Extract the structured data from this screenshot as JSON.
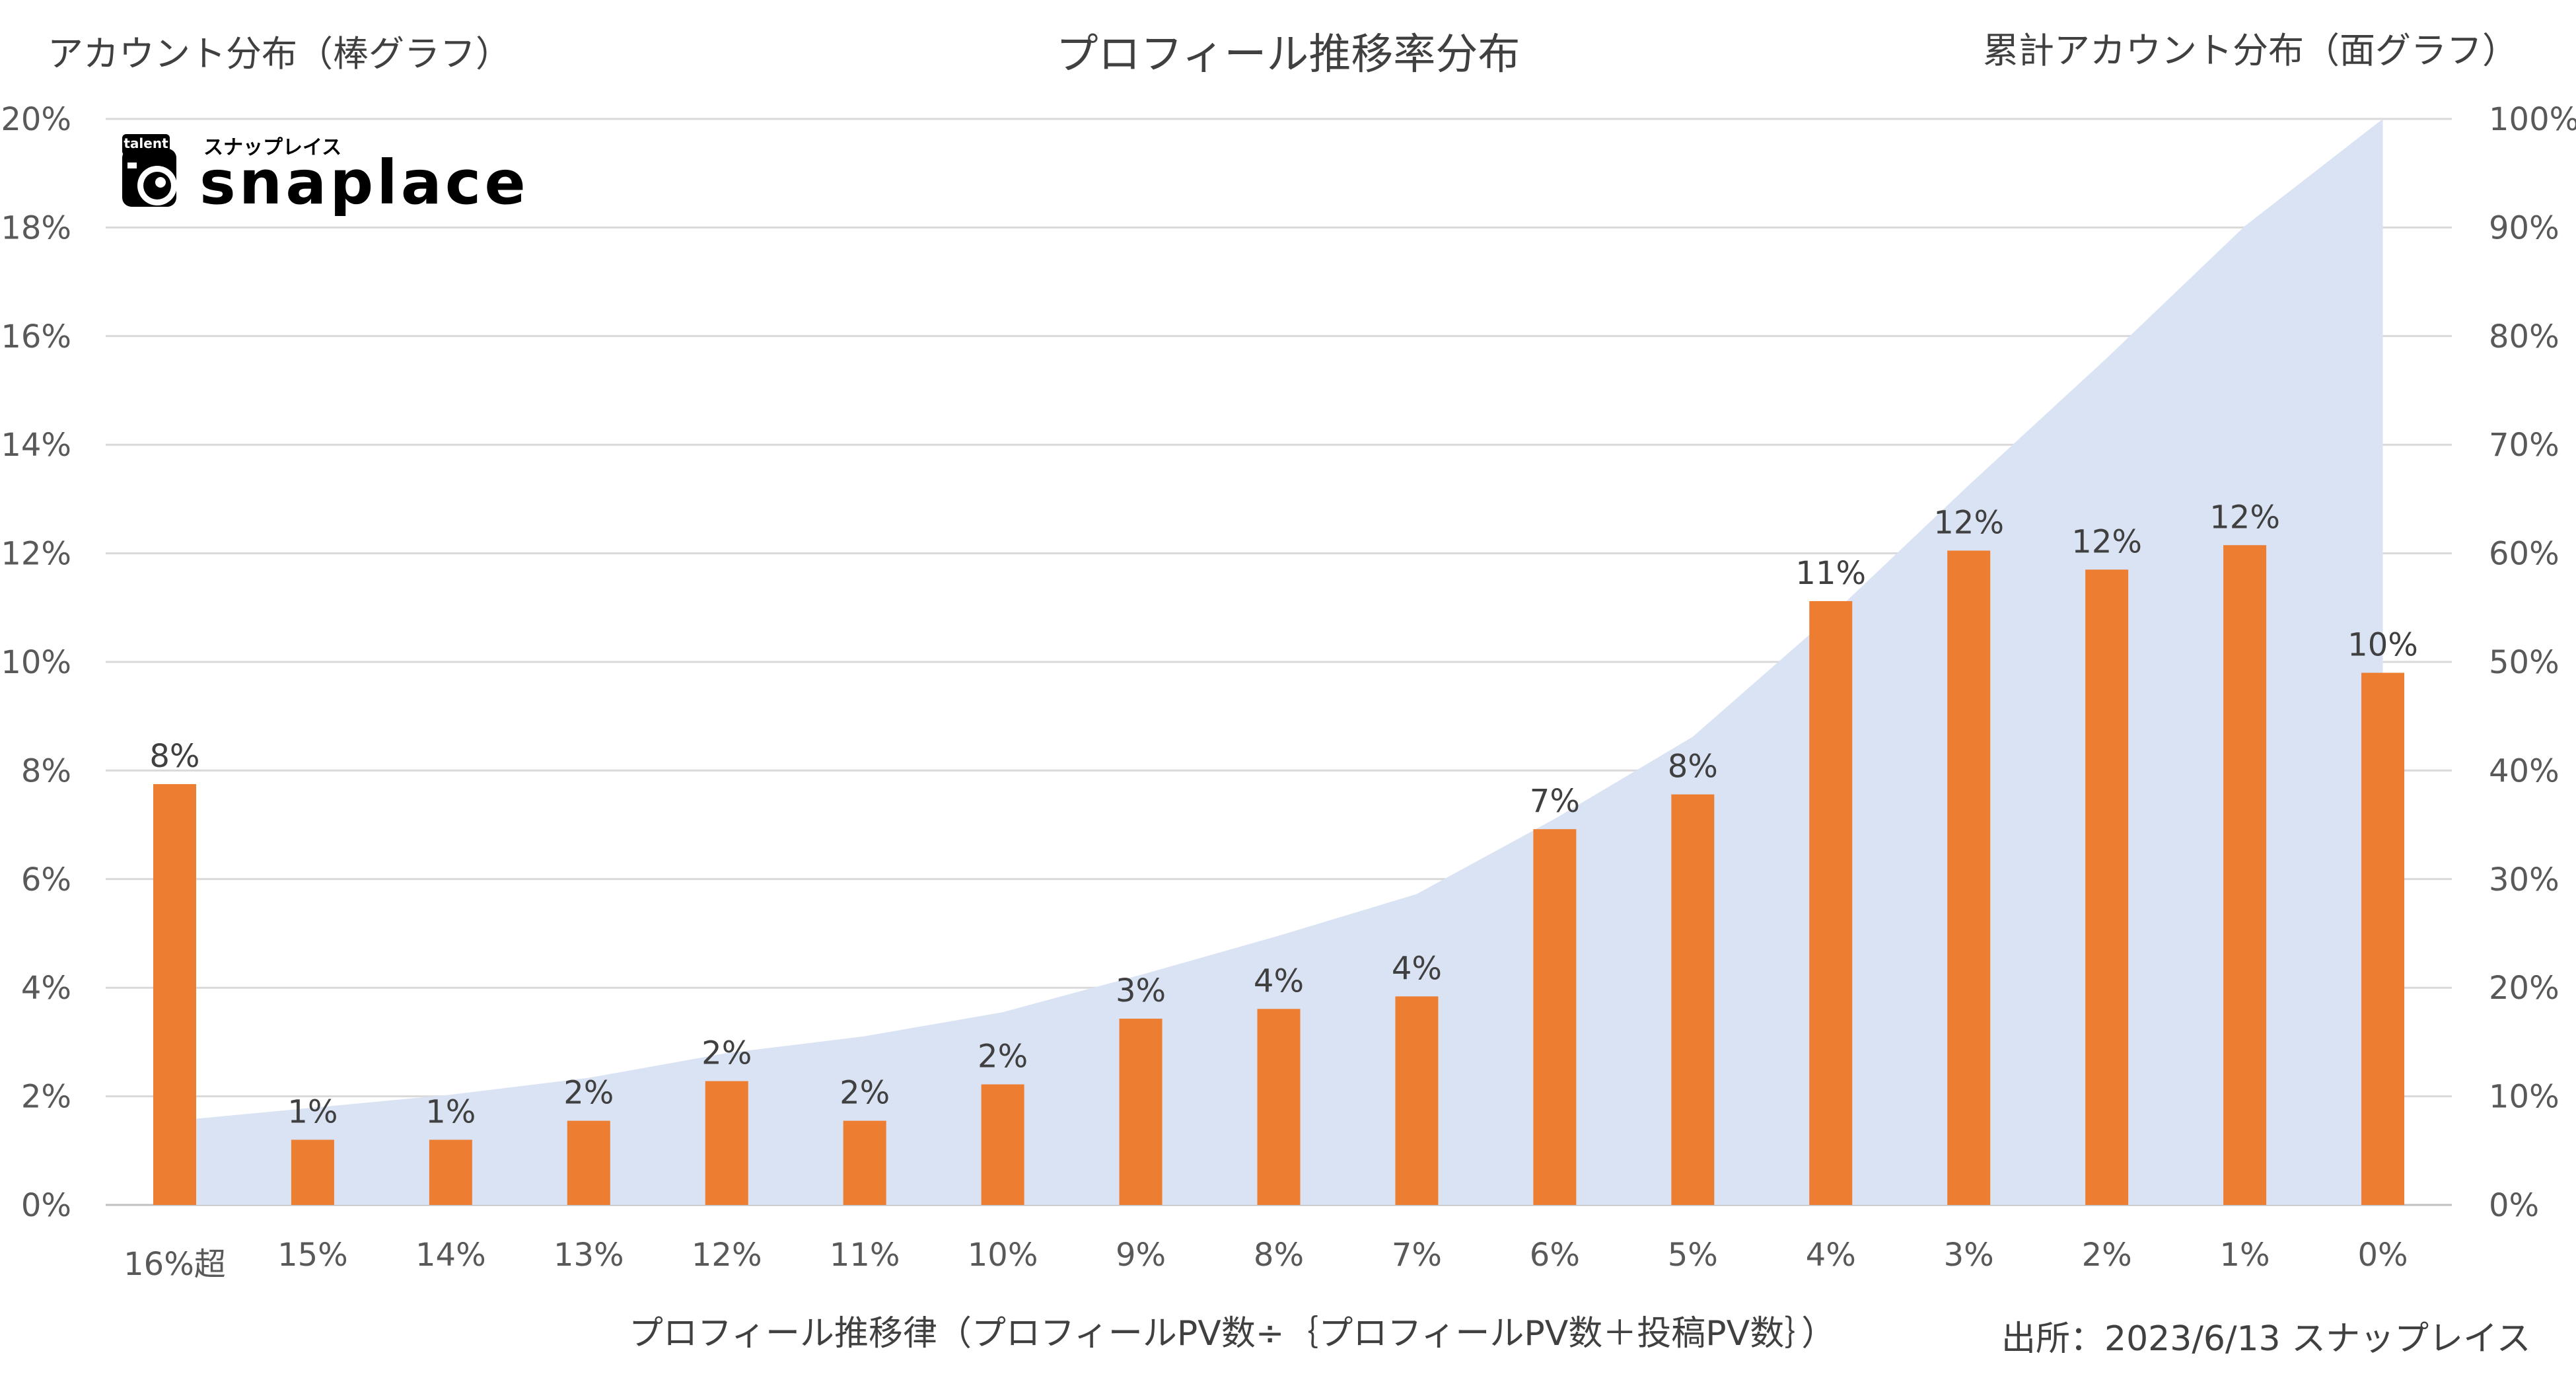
{
  "chart_data": {
    "type": "bar",
    "title": "プロフィール推移率分布",
    "y_left_label": "アカウント分布（棒グラフ）",
    "y_right_label": "累計アカウント分布（面グラフ）",
    "xlabel": "プロフィール推移律（プロフィールPV数÷｛プロフィールPV数＋投稿PV数｝）",
    "source": "出所：2023/6/13 スナップレイス",
    "categories": [
      "16%超",
      "15%",
      "14%",
      "13%",
      "12%",
      "11%",
      "10%",
      "9%",
      "8%",
      "7%",
      "6%",
      "5%",
      "4%",
      "3%",
      "2%",
      "1%",
      "0%"
    ],
    "ylim": [
      0,
      20
    ],
    "y_ticks": [
      "0%",
      "2%",
      "4%",
      "6%",
      "8%",
      "10%",
      "12%",
      "14%",
      "16%",
      "18%",
      "20%"
    ],
    "y2lim": [
      0,
      100
    ],
    "y2_ticks": [
      "0%",
      "10%",
      "20%",
      "30%",
      "40%",
      "50%",
      "60%",
      "70%",
      "80%",
      "90%",
      "100%"
    ],
    "grid": true,
    "series": [
      {
        "kind": "bar",
        "axis": "left",
        "color": "#ED7D31",
        "values": [
          7.75,
          1.2,
          1.2,
          1.55,
          2.28,
          1.55,
          2.22,
          3.43,
          3.61,
          3.84,
          6.92,
          7.56,
          11.12,
          12.05,
          11.7,
          12.15,
          9.8
        ],
        "data_labels": [
          "8%",
          "1%",
          "1%",
          "2%",
          "2%",
          "2%",
          "2%",
          "3%",
          "4%",
          "4%",
          "7%",
          "8%",
          "11%",
          "12%",
          "12%",
          "12%",
          "10%"
        ]
      },
      {
        "kind": "area",
        "axis": "right",
        "color": "#DAE3F3",
        "values": [
          7.75,
          8.95,
          10.15,
          11.7,
          13.98,
          15.53,
          17.75,
          21.18,
          24.79,
          28.63,
          35.55,
          43.11,
          54.23,
          66.28,
          77.98,
          90.13,
          100
        ]
      }
    ]
  },
  "logo": {
    "tag": "talent",
    "kana": "スナップレイス",
    "name": "snaplace",
    "colors": {
      "ink": "#000000"
    }
  }
}
